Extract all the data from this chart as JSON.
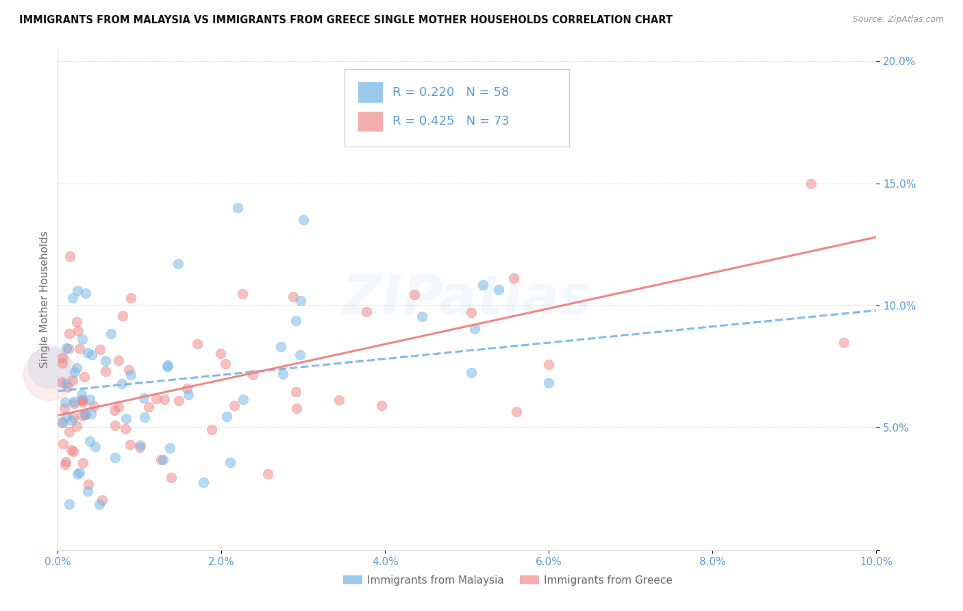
{
  "title": "IMMIGRANTS FROM MALAYSIA VS IMMIGRANTS FROM GREECE SINGLE MOTHER HOUSEHOLDS CORRELATION CHART",
  "source": "Source: ZipAtlas.com",
  "xlim": [
    0.0,
    0.1
  ],
  "ylim": [
    0.0,
    0.205
  ],
  "malaysia_color": "#7ab8e8",
  "greece_color": "#f08080",
  "malaysia_R": 0.22,
  "malaysia_N": 58,
  "greece_R": 0.425,
  "greece_N": 73,
  "watermark": "ZIPatlas",
  "legend_label_malaysia": "Immigrants from Malaysia",
  "legend_label_greece": "Immigrants from Greece",
  "malaysia_line_x0": 0.0,
  "malaysia_line_x1": 0.1,
  "malaysia_line_y0": 0.065,
  "malaysia_line_y1": 0.098,
  "greece_line_x0": 0.0,
  "greece_line_x1": 0.1,
  "greece_line_y0": 0.055,
  "greece_line_y1": 0.128
}
